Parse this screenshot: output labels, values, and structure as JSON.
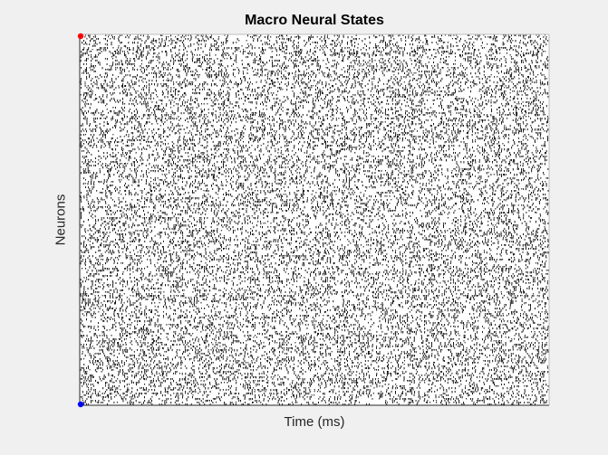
{
  "chart_data": {
    "type": "scatter",
    "subtype": "raster",
    "title": "Macro Neural States",
    "xlabel": "Time (ms)",
    "ylabel": "Neurons",
    "xticks": [],
    "yticks": [],
    "spike_color": "#000000",
    "marker_colors": {
      "top_marker": "#ff0000",
      "bottom_marker": "#0000ff"
    },
    "axes_background": "#ffffff",
    "figure_background": "#f0f0f0",
    "grid": false,
    "legend": "none",
    "series": [
      {
        "values": []
      }
    ],
    "description_of_values": ""
  }
}
